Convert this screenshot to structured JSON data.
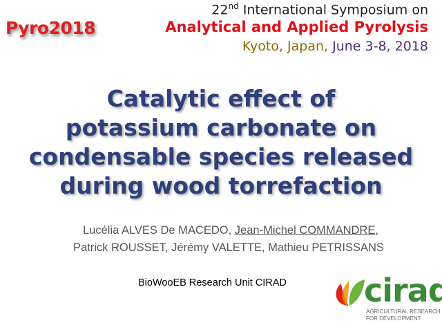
{
  "badge": "Pyro2018",
  "conference": {
    "edition": "22",
    "edition_suffix": "nd",
    "line1": "International Symposium on",
    "name": "Analytical and Applied Pyrolysis",
    "location": "Kyoto, Japan,",
    "dates": "June 3-8, 2018"
  },
  "title": [
    "Catalytic effect of",
    "potassium carbonate on",
    "condensable species released",
    "during wood torrefaction"
  ],
  "authors": [
    "Lucélia ALVES De MACEDO,",
    "Jean-Michel COMMANDRE",
    ",",
    "Patrick ROUSSET, Jérémy VALETTE, Mathieu PETRISSANS"
  ],
  "affiliation": "BioWooEB Research Unit CIRAD",
  "logo": {
    "name": "cirad",
    "tagline": [
      "AGRICULTURAL RESEARCH",
      "FOR DEVELOPMENT"
    ]
  }
}
